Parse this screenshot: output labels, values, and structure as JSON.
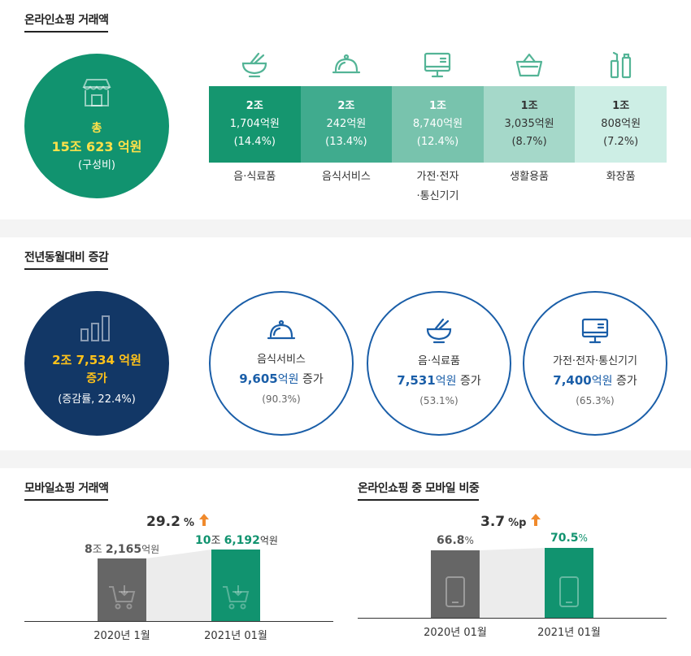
{
  "section1": {
    "title": "온라인쇼핑 거래액",
    "total": {
      "label": "총",
      "value": "15조 623",
      "unit": "억원",
      "note": "(구성비)"
    },
    "categories": [
      {
        "icon": "bowl-icon",
        "jo": "2조",
        "eok": "1,704",
        "unit": "억원",
        "pct": "(14.4%)",
        "name": "음·식료품",
        "color": "#15966f",
        "text": "#ffffff"
      },
      {
        "icon": "cloche-icon",
        "jo": "2조",
        "eok": "242",
        "unit": "억원",
        "pct": "(13.4%)",
        "name": "음식서비스",
        "color": "#40ab8e",
        "text": "#ffffff"
      },
      {
        "icon": "monitor-icon",
        "jo": "1조",
        "eok": "8,740",
        "unit": "억원",
        "pct": "(12.4%)",
        "name": "가전·전자\n·통신기기",
        "color": "#78c3ad",
        "text": "#ffffff"
      },
      {
        "icon": "basket-icon",
        "jo": "1조",
        "eok": "3,035",
        "unit": "억원",
        "pct": "(8.7%)",
        "name": "생활용품",
        "color": "#a5d8c9",
        "text": "#333333"
      },
      {
        "icon": "cosmetics-icon",
        "jo": "1조",
        "eok": "808",
        "unit": "억원",
        "pct": "(7.2%)",
        "name": "화장품",
        "color": "#cdeee5",
        "text": "#333333"
      }
    ]
  },
  "section2": {
    "title": "전년동월대비 증감",
    "total": {
      "value": "2조 7,534",
      "unit": "억원",
      "label": "증가",
      "note": "(증감률, 22.4%)"
    },
    "items": [
      {
        "icon": "cloche-icon",
        "name": "음식서비스",
        "num": "9,605",
        "unit": "억원",
        "suffix": " 증가",
        "pct": "(90.3%)"
      },
      {
        "icon": "bowl-icon",
        "name": "음·식료품",
        "num": "7,531",
        "unit": "억원",
        "suffix": " 증가",
        "pct": "(53.1%)"
      },
      {
        "icon": "monitor-icon",
        "name": "가전·전자·통신기기",
        "num": "7,400",
        "unit": "억원",
        "suffix": " 증가",
        "pct": "(65.3%)"
      }
    ]
  },
  "section3": {
    "left": {
      "title": "모바일쇼핑 거래액",
      "growth": "29.2",
      "growth_unit": "%",
      "bars": [
        {
          "label_num": "8",
          "label_mid": "조 ",
          "label_num2": "2,165",
          "label_unit": "억원",
          "x": "2020년 1월",
          "icon": "cart-icon"
        },
        {
          "label_num": "10",
          "label_mid": "조 ",
          "label_num2": "6,192",
          "label_unit": "억원",
          "x": "2021년 01월",
          "icon": "cart-icon"
        }
      ]
    },
    "right": {
      "title": "온라인쇼핑 중 모바일 비중",
      "growth": "3.7",
      "growth_unit": "%p",
      "bars": [
        {
          "label_num": "66.8",
          "label_unit": "%",
          "x": "2020년 01월",
          "icon": "phone-icon"
        },
        {
          "label_num": "70.5",
          "label_unit": "%",
          "x": "2021년 01월",
          "icon": "phone-icon"
        }
      ]
    }
  }
}
